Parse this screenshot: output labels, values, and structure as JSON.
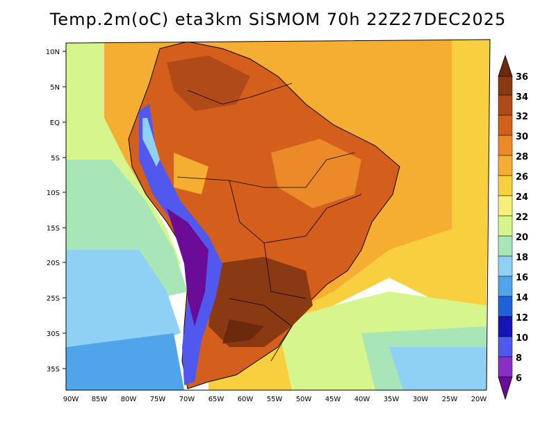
{
  "title": "Temp.2m(oC) eta3km SiSMOM 70h 22Z27DEC2025",
  "lat_labels": [
    "10N",
    "5N",
    "EQ",
    "5S",
    "10S",
    "15S",
    "20S",
    "25S",
    "30S",
    "35S"
  ],
  "lon_labels": [
    "90W",
    "85W",
    "80W",
    "75W",
    "70W",
    "65W",
    "60W",
    "55W",
    "50W",
    "45W",
    "40W",
    "35W",
    "30W",
    "25W",
    "20W"
  ],
  "colorbar": {
    "labels": [
      "36",
      "34",
      "32",
      "30",
      "28",
      "26",
      "24",
      "22",
      "20",
      "18",
      "16",
      "14",
      "12",
      "10",
      "8",
      "6"
    ],
    "colors": [
      "#6b2a0c",
      "#8a3a12",
      "#b04a18",
      "#d45e1c",
      "#ec8a2a",
      "#f5ad32",
      "#f8cf3e",
      "#f7ef7a",
      "#d6f58c",
      "#a8e6b8",
      "#8fd0f5",
      "#4fa4ea",
      "#2060d8",
      "#1414b8",
      "#5058ee",
      "#8a2ec8",
      "#6a0c98"
    ]
  }
}
